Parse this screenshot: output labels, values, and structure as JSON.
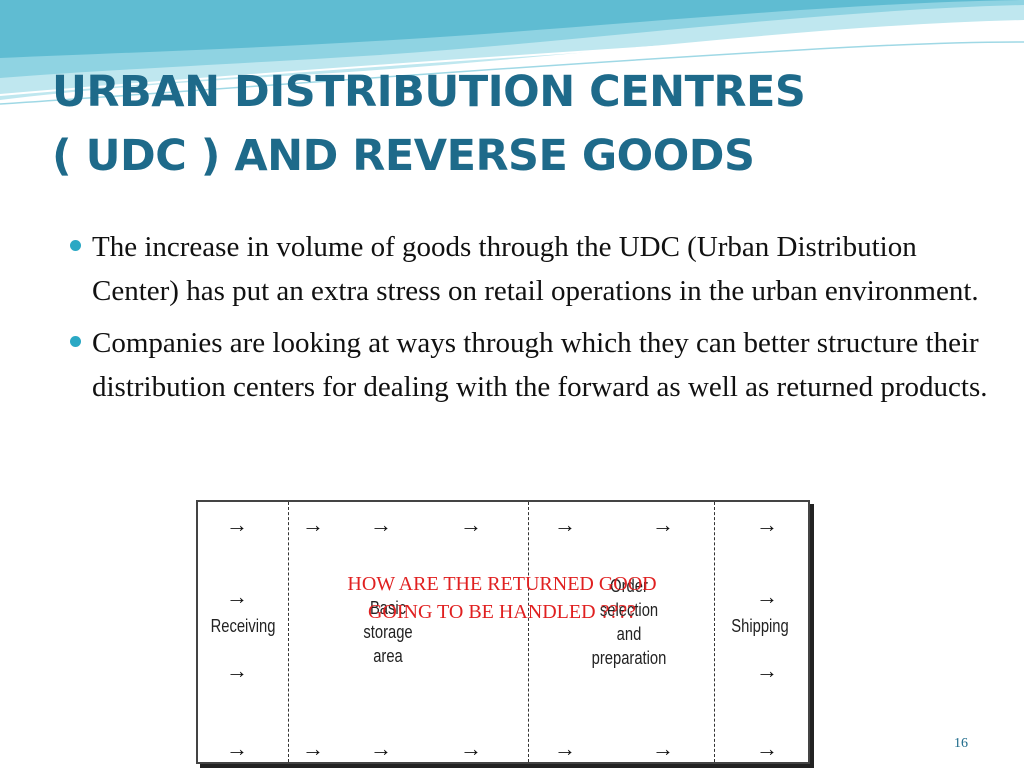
{
  "title": {
    "line1": "URBAN DISTRIBUTION CENTRES",
    "line2": "( UDC )  AND REVERSE GOODS"
  },
  "bullets": [
    "The increase in volume of goods through the UDC (Urban Distribution Center) has put an extra stress on retail operations in the urban environment.",
    "Companies are looking at ways through which they can better structure their distribution centers for dealing with the forward as well as returned products."
  ],
  "diagram": {
    "zones": {
      "receiving": "Receiving",
      "storage": [
        "Basic",
        "storage",
        "area"
      ],
      "order": [
        "Order",
        "selection",
        "and",
        "preparation"
      ],
      "shipping": "Shipping"
    },
    "arrow_glyph": "→"
  },
  "overlay": {
    "line1": "HOW ARE THE RETURNED GOOD",
    "line2": "GOING TO BE HANDLED ????"
  },
  "slide_number": "16",
  "colors": {
    "title": "#1e6a8a",
    "bullet": "#2aa8c4",
    "overlay_text": "#e02020",
    "wave_dark": "#6fc4d8",
    "wave_light": "#bfe7ef"
  }
}
